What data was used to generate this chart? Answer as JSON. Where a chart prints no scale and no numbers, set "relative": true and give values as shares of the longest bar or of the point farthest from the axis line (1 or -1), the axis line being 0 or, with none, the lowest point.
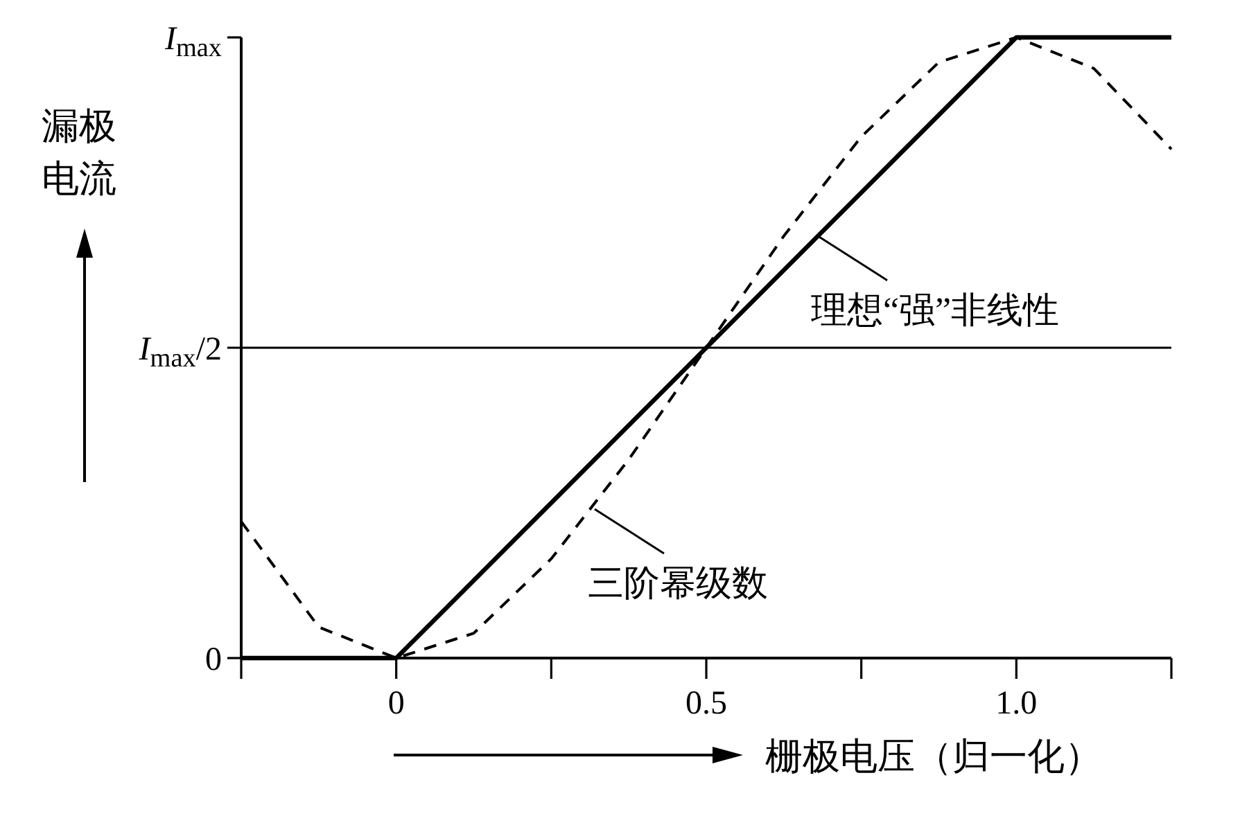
{
  "chart_data": {
    "type": "line",
    "xlabel": "栅极电压（归一化）",
    "ylabel": "漏极电流",
    "xlim": [
      -0.25,
      1.25
    ],
    "xticks": [
      {
        "value": -0.25,
        "label": null
      },
      0,
      {
        "value": 0.25,
        "label": null
      },
      0.5,
      {
        "value": 0.75,
        "label": null
      },
      {
        "value": 1,
        "label": "1.0"
      },
      {
        "value": 1.25,
        "label": null
      }
    ],
    "relative": true,
    "series": [
      {
        "color": "#000000",
        "x": [
          -0.25,
          0,
          1,
          1.25
        ],
        "values": [
          0,
          0,
          1,
          1
        ]
      },
      {
        "color": "#000000",
        "line_style": "dashed",
        "x": [
          -0.25,
          -0.125,
          0,
          0.125,
          0.25,
          0.375,
          0.5,
          0.625,
          0.75,
          0.875,
          1,
          1.125,
          1.25
        ],
        "values": [
          0.22,
          0.05,
          0,
          0.04,
          0.16,
          0.32,
          0.5,
          0.68,
          0.84,
          0.96,
          1,
          0.95,
          0.82
        ]
      }
    ],
    "ref_lines": [
      {
        "axis": "y",
        "value": 0.5,
        "color": "#000000",
        "label": "I$_{max}$/2"
      }
    ],
    "annotations": [
      {
        "text": "理想“强”非线性",
        "x": 0.68,
        "y": 0.68
      },
      {
        "text": "三阶幂级数",
        "x": 0.32,
        "y": 0.24
      },
      "I$_{max}$",
      "0"
    ],
    "marker": "none"
  }
}
